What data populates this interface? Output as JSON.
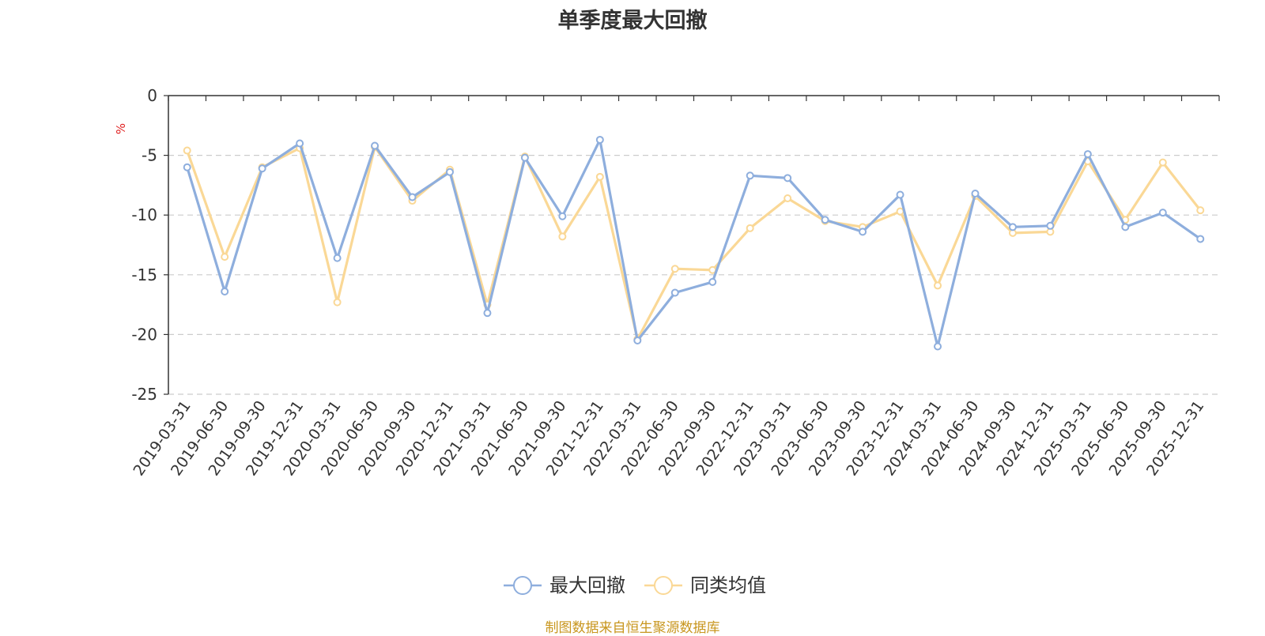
{
  "source_note": "制图数据来自恒生聚源数据库",
  "colors": {
    "series_1": "#8eaedd",
    "series_2": "#fad896",
    "ylabel": "#e02020"
  },
  "chart_data": {
    "type": "line",
    "title": "单季度最大回撤",
    "xlabel": "",
    "ylabel": "%",
    "ylim": [
      -25,
      0
    ],
    "yticks": [
      0,
      -5,
      -10,
      -15,
      -20,
      -25
    ],
    "grid": true,
    "legend_position": "bottom",
    "categories": [
      "2019-03-31",
      "2019-06-30",
      "2019-09-30",
      "2019-12-31",
      "2020-03-31",
      "2020-06-30",
      "2020-09-30",
      "2020-12-31",
      "2021-03-31",
      "2021-06-30",
      "2021-09-30",
      "2021-12-31",
      "2022-03-31",
      "2022-06-30",
      "2022-09-30",
      "2022-12-31",
      "2023-03-31",
      "2023-06-30",
      "2023-09-30",
      "2023-12-31",
      "2024-03-31",
      "2024-06-30",
      "2024-09-30",
      "2024-12-31",
      "2025-03-31",
      "2025-06-30",
      "2025-09-30",
      "2025-12-31"
    ],
    "series": [
      {
        "name": "最大回撤",
        "values": [
          -6.0,
          -16.4,
          -6.1,
          -4.0,
          -13.6,
          -4.2,
          -8.5,
          -6.4,
          -18.2,
          -5.2,
          -10.1,
          -3.7,
          -20.5,
          -16.5,
          -15.6,
          -6.7,
          -6.9,
          -10.4,
          -11.4,
          -8.3,
          -21.0,
          -8.2,
          -11.0,
          -10.9,
          -4.9,
          -11.0,
          -9.8,
          -12.0
        ]
      },
      {
        "name": "同类均值",
        "values": [
          -4.6,
          -13.5,
          -6.0,
          -4.4,
          -17.3,
          -4.3,
          -8.8,
          -6.2,
          -17.5,
          -5.1,
          -11.8,
          -6.8,
          -20.4,
          -14.5,
          -14.6,
          -11.1,
          -8.6,
          -10.5,
          -11.0,
          -9.7,
          -15.9,
          -8.4,
          -11.5,
          -11.4,
          -5.5,
          -10.4,
          -5.6,
          -9.6
        ]
      }
    ]
  }
}
